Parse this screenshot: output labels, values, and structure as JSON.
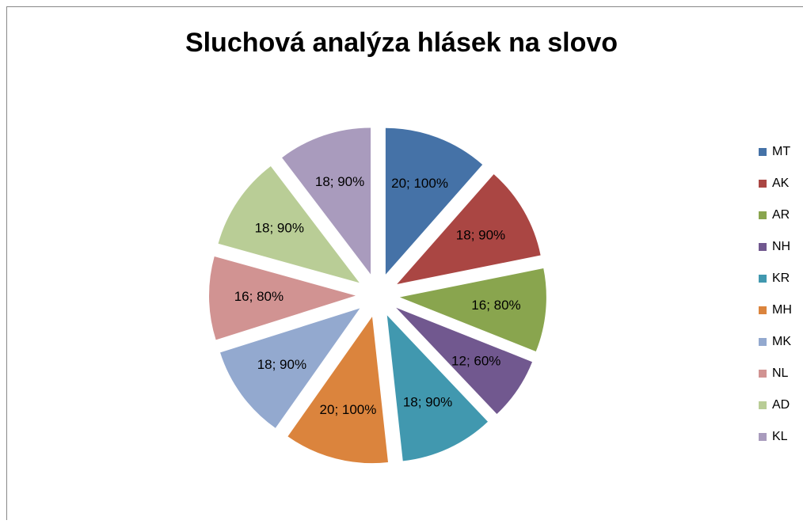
{
  "chart_data": {
    "type": "pie",
    "title": "Sluchová analýza hlásek na slovo",
    "categories": [
      "MT",
      "AK",
      "AR",
      "NH",
      "KR",
      "MH",
      "MK",
      "NL",
      "AD",
      "KL"
    ],
    "values": [
      20,
      18,
      16,
      12,
      18,
      20,
      18,
      16,
      18,
      18
    ],
    "value_labels": [
      "20; 100%",
      "18; 90%",
      "16; 80%",
      "12; 60%",
      "18; 90%",
      "20; 100%",
      "18; 90%",
      "16; 80%",
      "18; 90%",
      "18; 90%"
    ],
    "colors": [
      "#4572a7",
      "#aa4643",
      "#89a54e",
      "#71588f",
      "#4198af",
      "#db843d",
      "#93a9cf",
      "#d19392",
      "#b9cd96",
      "#a99bbd"
    ],
    "legend": "right"
  }
}
